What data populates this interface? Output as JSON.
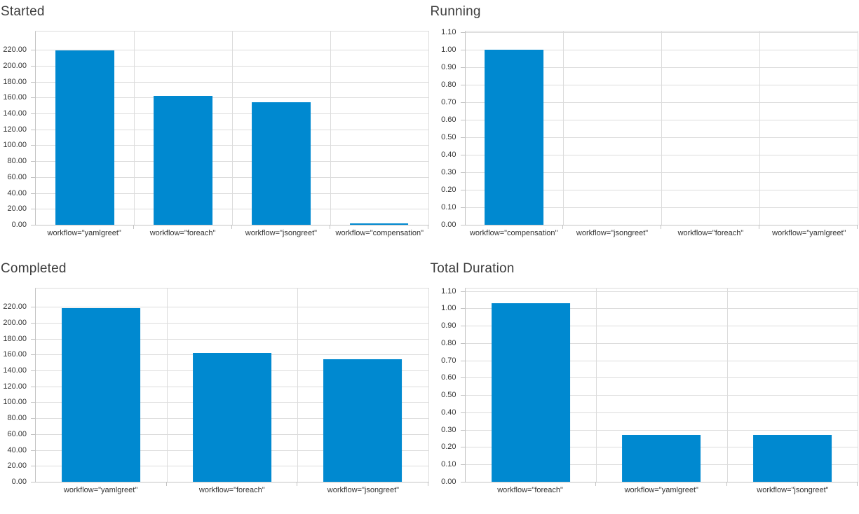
{
  "page": {
    "background": "#ffffff"
  },
  "theme": {
    "bar_color": "#0089d0",
    "gridline_color": "#dcdcdc",
    "axis_color": "#c2c2c2",
    "title_color": "#3d3d3d",
    "label_color": "#333333"
  },
  "chart_data": [
    {
      "type": "bar",
      "title": "Started",
      "categories": [
        "workflow=\"yamlgreet\"",
        "workflow=\"foreach\"",
        "workflow=\"jsongreet\"",
        "workflow=\"compensation\""
      ],
      "values": [
        219,
        162,
        154,
        2
      ],
      "xlabel": "",
      "ylabel": "",
      "ylim": [
        0,
        243
      ],
      "yticks": {
        "start": 0,
        "end": 220,
        "step": 20,
        "decimals": 2
      },
      "grid": true,
      "legend": "none",
      "bar_width_ratio": 0.6
    },
    {
      "type": "bar",
      "title": "Running",
      "categories": [
        "workflow=\"compensation\"",
        "workflow=\"jsongreet\"",
        "workflow=\"foreach\"",
        "workflow=\"yamlgreet\""
      ],
      "values": [
        1.0,
        0,
        0,
        0
      ],
      "xlabel": "",
      "ylabel": "",
      "ylim": [
        0,
        1.104
      ],
      "yticks": {
        "start": 0,
        "end": 1.1,
        "step": 0.1,
        "decimals": 2
      },
      "grid": true,
      "legend": "none",
      "bar_width_ratio": 0.6
    },
    {
      "type": "bar",
      "title": "Completed",
      "categories": [
        "workflow=\"yamlgreet\"",
        "workflow=\"foreach\"",
        "workflow=\"jsongreet\""
      ],
      "values": [
        218.5,
        162,
        154
      ],
      "xlabel": "",
      "ylabel": "",
      "ylim": [
        0,
        243
      ],
      "yticks": {
        "start": 0,
        "end": 220,
        "step": 20,
        "decimals": 2
      },
      "grid": true,
      "legend": "none",
      "bar_width_ratio": 0.6
    },
    {
      "type": "bar",
      "title": "Total Duration",
      "categories": [
        "workflow=\"foreach\"",
        "workflow=\"yamlgreet\"",
        "workflow=\"jsongreet\""
      ],
      "values": [
        1.03,
        0.27,
        0.27
      ],
      "xlabel": "",
      "ylabel": "",
      "ylim": [
        0,
        1.115
      ],
      "yticks": {
        "start": 0,
        "end": 1.1,
        "step": 0.1,
        "decimals": 2
      },
      "grid": true,
      "legend": "none",
      "bar_width_ratio": 0.6
    }
  ]
}
